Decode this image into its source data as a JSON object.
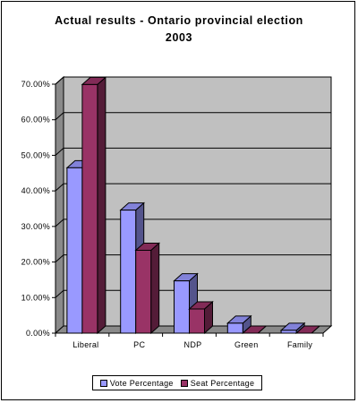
{
  "chart_data": {
    "type": "bar",
    "title_lines": [
      "Actual results - Ontario provincial election",
      "2003"
    ],
    "categories": [
      "Liberal",
      "PC",
      "NDP",
      "Green",
      "Family"
    ],
    "series": [
      {
        "name": "Vote Percentage",
        "values": [
          46.5,
          34.6,
          14.7,
          2.8,
          0.8
        ],
        "color": "#9999ff"
      },
      {
        "name": "Seat Percentage",
        "values": [
          69.9,
          23.3,
          6.8,
          0.0,
          0.0
        ],
        "color": "#993366"
      }
    ],
    "y_ticks": [
      "0.00%",
      "10.00%",
      "20.00%",
      "30.00%",
      "40.00%",
      "50.00%",
      "60.00%",
      "70.00%"
    ],
    "ylim": [
      0,
      70
    ],
    "grid": true,
    "legend_position": "bottom"
  }
}
